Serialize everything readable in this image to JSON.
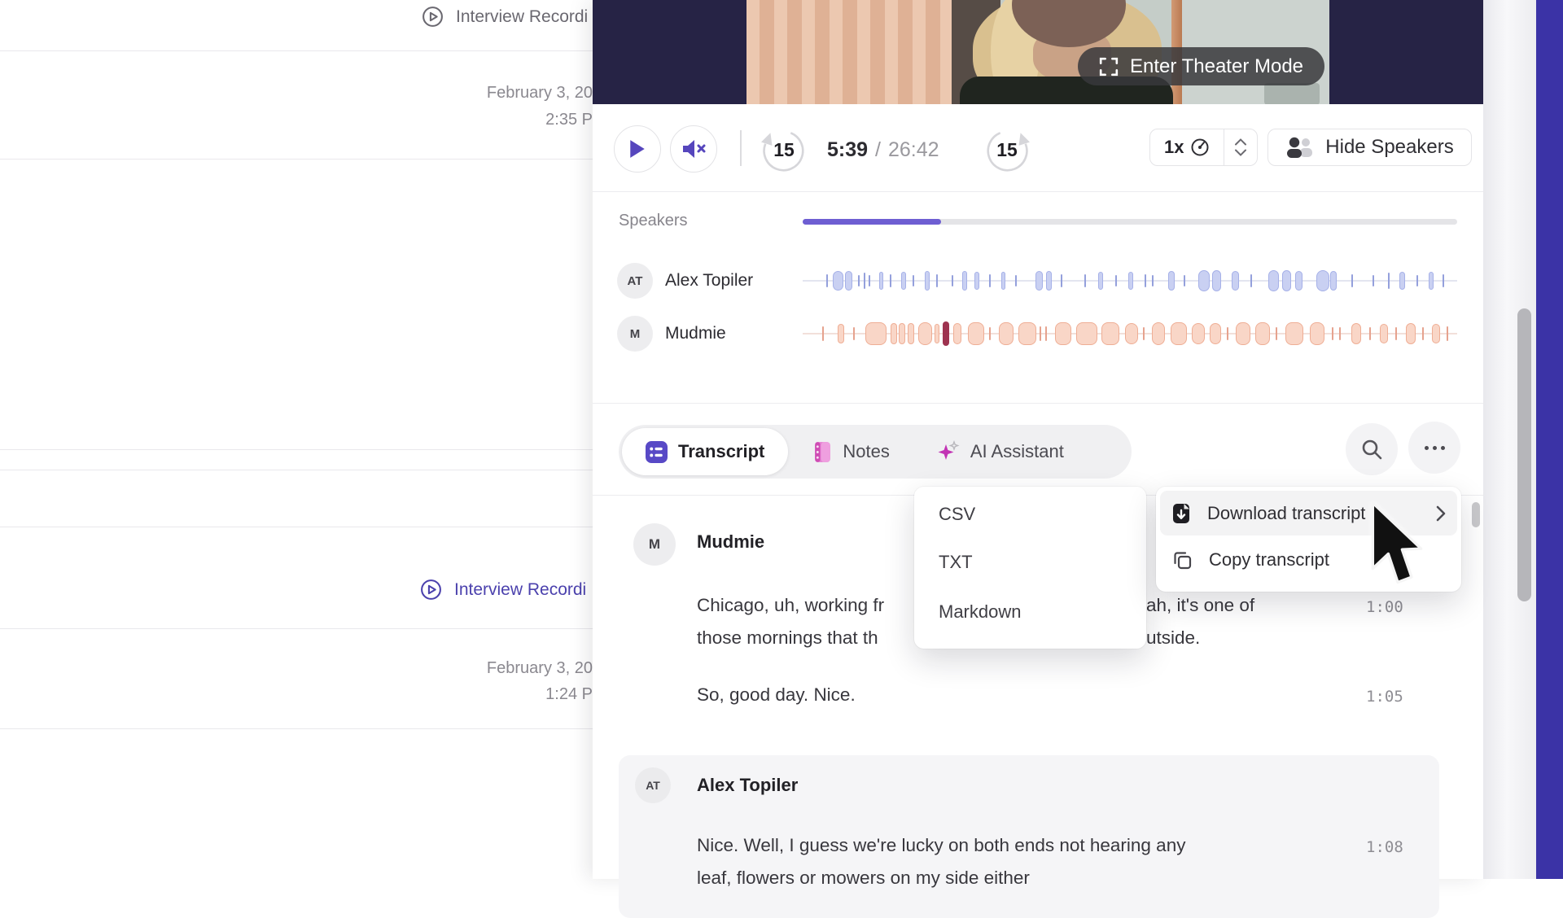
{
  "sidebar": {
    "items": [
      {
        "title": "Interview Recordi",
        "date": "February 3, 20",
        "time": "2:35 P"
      },
      {
        "title": "Interview Recordi",
        "date": "February 3, 20",
        "time": "1:24 P"
      }
    ]
  },
  "player": {
    "theater_label": "Enter Theater Mode",
    "skip_back": "15",
    "skip_forward": "15",
    "current_time": "5:39",
    "time_separator": "/",
    "duration": "26:42",
    "speed": "1x",
    "hide_speakers_label": "Hide Speakers",
    "progress_pct": 21.2
  },
  "speakers": {
    "heading": "Speakers",
    "rows": [
      {
        "initials": "AT",
        "name": "Alex Topiler"
      },
      {
        "initials": "M",
        "name": "Mudmie"
      }
    ]
  },
  "tabs": [
    {
      "label": "Transcript",
      "active": true
    },
    {
      "label": "Notes",
      "active": false
    },
    {
      "label": "AI Assistant",
      "active": false
    }
  ],
  "context_menu": {
    "download_label": "Download transcript",
    "copy_label": "Copy transcript",
    "formats": [
      "CSV",
      "TXT",
      "Markdown"
    ]
  },
  "transcript": {
    "block1": {
      "initials": "M",
      "name": "Mudmie",
      "p1_line1_left": "Chicago, uh, working fr",
      "p1_line1_right": "ah, it's one of",
      "p1_line2_left": "those mornings that th",
      "p1_line2_right": "utside.",
      "p1_timestamp": "1:00",
      "p2_text": "So, good day. Nice.",
      "p2_timestamp": "1:05"
    },
    "block2": {
      "initials": "AT",
      "name": "Alex Topiler",
      "p1_line1": "Nice. Well, I guess we're lucky on both ends not hearing any",
      "p1_line2": "leaf, flowers or mowers on my side either",
      "p1_timestamp": "1:08"
    }
  },
  "colors": {
    "accent_purple": "#5a49c6",
    "progress_fill": "#6e5ed2",
    "video_background": "#262345",
    "indigo_strip": "#3b33a6",
    "playhead_marker": "#9e3350"
  },
  "waveform_styles": {
    "alex": {
      "tick": "#94a0dc",
      "fill": "#c9d0f2",
      "border": "#a6b1e8",
      "line": "#e3e5f0"
    },
    "mudmie": {
      "tick": "#e6a28e",
      "fill": "#f9d6c7",
      "border": "#efae95",
      "line": "#f2e0da",
      "current": "#9e3350"
    }
  },
  "waveforms": {
    "alex": [
      [
        0.036,
        2,
        16,
        "t"
      ],
      [
        0.046,
        13,
        24,
        "b"
      ],
      [
        0.064,
        9,
        24,
        "b"
      ],
      [
        0.085,
        2,
        14,
        "t"
      ],
      [
        0.093,
        2,
        20,
        "t"
      ],
      [
        0.101,
        2,
        14,
        "t"
      ],
      [
        0.117,
        5,
        22,
        "b"
      ],
      [
        0.133,
        2,
        16,
        "t"
      ],
      [
        0.15,
        6,
        22,
        "b"
      ],
      [
        0.168,
        2,
        14,
        "t"
      ],
      [
        0.186,
        6,
        24,
        "b"
      ],
      [
        0.204,
        2,
        16,
        "t"
      ],
      [
        0.228,
        2,
        14,
        "t"
      ],
      [
        0.244,
        6,
        24,
        "b"
      ],
      [
        0.262,
        6,
        22,
        "b"
      ],
      [
        0.285,
        2,
        16,
        "t"
      ],
      [
        0.303,
        5,
        22,
        "b"
      ],
      [
        0.324,
        2,
        14,
        "t"
      ],
      [
        0.356,
        9,
        24,
        "b"
      ],
      [
        0.372,
        7,
        24,
        "b"
      ],
      [
        0.394,
        2,
        16,
        "t"
      ],
      [
        0.43,
        2,
        16,
        "t"
      ],
      [
        0.452,
        6,
        22,
        "b"
      ],
      [
        0.478,
        2,
        14,
        "t"
      ],
      [
        0.498,
        6,
        22,
        "b"
      ],
      [
        0.522,
        2,
        16,
        "t"
      ],
      [
        0.534,
        2,
        14,
        "t"
      ],
      [
        0.558,
        8,
        24,
        "b"
      ],
      [
        0.582,
        2,
        14,
        "t"
      ],
      [
        0.604,
        14,
        26,
        "b"
      ],
      [
        0.626,
        11,
        26,
        "b"
      ],
      [
        0.655,
        9,
        24,
        "b"
      ],
      [
        0.684,
        2,
        16,
        "t"
      ],
      [
        0.712,
        13,
        26,
        "b"
      ],
      [
        0.733,
        11,
        26,
        "b"
      ],
      [
        0.752,
        9,
        24,
        "b"
      ],
      [
        0.785,
        16,
        26,
        "b"
      ],
      [
        0.806,
        8,
        24,
        "b"
      ],
      [
        0.838,
        2,
        16,
        "t"
      ],
      [
        0.87,
        2,
        14,
        "t"
      ],
      [
        0.894,
        2,
        20,
        "t"
      ],
      [
        0.912,
        7,
        22,
        "b"
      ],
      [
        0.938,
        2,
        14,
        "t"
      ],
      [
        0.956,
        6,
        22,
        "b"
      ],
      [
        0.978,
        2,
        16,
        "t"
      ]
    ],
    "mudmie": [
      [
        0.03,
        2,
        18,
        "t"
      ],
      [
        0.054,
        8,
        24,
        "b"
      ],
      [
        0.077,
        2,
        16,
        "t"
      ],
      [
        0.096,
        26,
        28,
        "b"
      ],
      [
        0.134,
        8,
        26,
        "b"
      ],
      [
        0.147,
        8,
        26,
        "b"
      ],
      [
        0.16,
        8,
        26,
        "b"
      ],
      [
        0.176,
        17,
        28,
        "b"
      ],
      [
        0.202,
        6,
        24,
        "b"
      ],
      [
        0.214,
        8,
        30,
        "c"
      ],
      [
        0.23,
        10,
        26,
        "b"
      ],
      [
        0.252,
        20,
        28,
        "b"
      ],
      [
        0.285,
        2,
        16,
        "t"
      ],
      [
        0.3,
        18,
        28,
        "b"
      ],
      [
        0.33,
        22,
        28,
        "b"
      ],
      [
        0.362,
        2,
        18,
        "t"
      ],
      [
        0.37,
        2,
        18,
        "t"
      ],
      [
        0.385,
        20,
        28,
        "b"
      ],
      [
        0.418,
        26,
        28,
        "b"
      ],
      [
        0.456,
        22,
        28,
        "b"
      ],
      [
        0.492,
        16,
        26,
        "b"
      ],
      [
        0.52,
        2,
        16,
        "t"
      ],
      [
        0.534,
        16,
        28,
        "b"
      ],
      [
        0.562,
        20,
        28,
        "b"
      ],
      [
        0.594,
        16,
        26,
        "b"
      ],
      [
        0.622,
        14,
        26,
        "b"
      ],
      [
        0.648,
        2,
        16,
        "t"
      ],
      [
        0.662,
        18,
        28,
        "b"
      ],
      [
        0.692,
        18,
        28,
        "b"
      ],
      [
        0.722,
        2,
        16,
        "t"
      ],
      [
        0.738,
        22,
        28,
        "b"
      ],
      [
        0.775,
        18,
        28,
        "b"
      ],
      [
        0.808,
        2,
        16,
        "t"
      ],
      [
        0.82,
        2,
        16,
        "t"
      ],
      [
        0.838,
        12,
        26,
        "b"
      ],
      [
        0.865,
        2,
        16,
        "t"
      ],
      [
        0.882,
        10,
        24,
        "b"
      ],
      [
        0.905,
        2,
        16,
        "t"
      ],
      [
        0.922,
        12,
        26,
        "b"
      ],
      [
        0.946,
        2,
        16,
        "t"
      ],
      [
        0.962,
        10,
        24,
        "b"
      ],
      [
        0.984,
        2,
        18,
        "t"
      ]
    ]
  }
}
